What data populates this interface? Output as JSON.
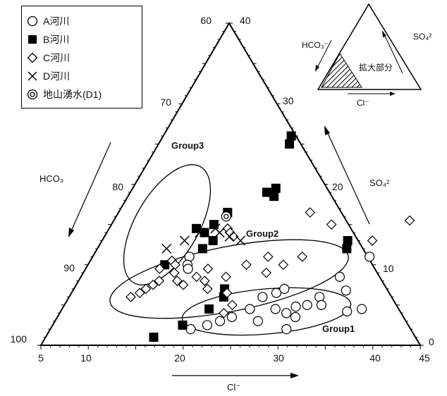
{
  "chart_data": {
    "type": "scatter",
    "subtype": "ternary-enlarged-section",
    "corner_labels": {
      "left_top": "60",
      "left_bottom": "100",
      "right_top": "40",
      "right_bottom": "0"
    },
    "left_axis_ticks": [
      "70",
      "80",
      "90"
    ],
    "right_axis_ticks": [
      "30",
      "20",
      "10"
    ],
    "bottom_axis_ticks": [
      "5",
      "10",
      "20",
      "30",
      "40",
      "45"
    ],
    "axis_labels": {
      "left": "HCO₃",
      "right": "SO₄²",
      "bottom": "Cl⁻"
    },
    "groups": [
      {
        "label": "Group3"
      },
      {
        "label": "Group2"
      },
      {
        "label": "Group1"
      }
    ],
    "legend": [
      {
        "key": "A",
        "label": "A河川",
        "marker": "open-circle"
      },
      {
        "key": "B",
        "label": "B河川",
        "marker": "filled-square"
      },
      {
        "key": "C",
        "label": "C河川",
        "marker": "open-diamond"
      },
      {
        "key": "D",
        "label": "D河川",
        "marker": "cross"
      },
      {
        "key": "D1",
        "label": "地山湧水(D1)",
        "marker": "double-circle"
      }
    ],
    "inset": {
      "labels": {
        "left": "HCO₃⁻",
        "right": "SO₄²",
        "bottom": "Cl⁻",
        "region": "拡大部分"
      }
    },
    "units": "Cl, SO4 in %; HCO3 = 100 - Cl - SO4",
    "series": [
      {
        "name": "A河川",
        "points": [
          {
            "cl": 15.2,
            "so4": 11
          },
          {
            "cl": 15.5,
            "so4": 10
          },
          {
            "cl": 15.8,
            "so4": 9.5
          },
          {
            "cl": 19.8,
            "so4": 2
          },
          {
            "cl": 21.3,
            "so4": 2.5
          },
          {
            "cl": 22.4,
            "so4": 3
          },
          {
            "cl": 23.4,
            "so4": 3.5
          },
          {
            "cl": 24.8,
            "so4": 4.5
          },
          {
            "cl": 25.4,
            "so4": 6
          },
          {
            "cl": 26.6,
            "so4": 6.5
          },
          {
            "cl": 27.2,
            "so4": 7
          },
          {
            "cl": 26.4,
            "so4": 3
          },
          {
            "cl": 27.5,
            "so4": 4.5
          },
          {
            "cl": 28.9,
            "so4": 4
          },
          {
            "cl": 29.5,
            "so4": 4.8
          },
          {
            "cl": 30.1,
            "so4": 3.5
          },
          {
            "cl": 30.6,
            "so4": 5
          },
          {
            "cl": 29.9,
            "so4": 2
          },
          {
            "cl": 31.4,
            "so4": 6
          },
          {
            "cl": 32.1,
            "so4": 5
          },
          {
            "cl": 33.8,
            "so4": 6.8
          },
          {
            "cl": 35.2,
            "so4": 4.2
          },
          {
            "cl": 36.6,
            "so4": 4.5
          },
          {
            "cl": 34.2,
            "so4": 11
          },
          {
            "cl": 32.3,
            "so4": 8.5
          }
        ]
      },
      {
        "name": "B河川",
        "points": [
          {
            "cl": 18.5,
            "so4": 26
          },
          {
            "cl": 18.8,
            "so4": 25
          },
          {
            "cl": 19.4,
            "so4": 19
          },
          {
            "cl": 20.1,
            "so4": 19.5
          },
          {
            "cl": 20.4,
            "so4": 18.5
          },
          {
            "cl": 16.5,
            "so4": 16.5
          },
          {
            "cl": 14.2,
            "so4": 14.5
          },
          {
            "cl": 15.3,
            "so4": 14
          },
          {
            "cl": 15.8,
            "so4": 15
          },
          {
            "cl": 16.1,
            "so4": 12
          },
          {
            "cl": 16.7,
            "so4": 13
          },
          {
            "cl": 13.1,
            "so4": 10
          },
          {
            "cl": 20.9,
            "so4": 7
          },
          {
            "cl": 21.3,
            "so4": 6
          },
          {
            "cl": 20.5,
            "so4": 4.5
          },
          {
            "cl": 18.7,
            "so4": 2.5
          },
          {
            "cl": 16.4,
            "so4": 1
          },
          {
            "cl": 30.9,
            "so4": 13
          },
          {
            "cl": 31.3,
            "so4": 12
          }
        ]
      },
      {
        "name": "C河川",
        "points": [
          {
            "cl": 11.5,
            "so4": 6
          },
          {
            "cl": 12.2,
            "so4": 6.5
          },
          {
            "cl": 12.6,
            "so4": 7
          },
          {
            "cl": 13.1,
            "so4": 7.5
          },
          {
            "cl": 13.5,
            "so4": 8
          },
          {
            "cl": 12.8,
            "so4": 9.5
          },
          {
            "cl": 13.6,
            "so4": 10.5
          },
          {
            "cl": 14.2,
            "so4": 10
          },
          {
            "cl": 14.6,
            "so4": 9
          },
          {
            "cl": 15.4,
            "so4": 8
          },
          {
            "cl": 16.3,
            "so4": 7.5
          },
          {
            "cl": 17.2,
            "so4": 8.5
          },
          {
            "cl": 17.9,
            "so4": 9.5
          },
          {
            "cl": 18.3,
            "so4": 8
          },
          {
            "cl": 19.1,
            "so4": 7
          },
          {
            "cl": 20.3,
            "so4": 8.5
          },
          {
            "cl": 21.7,
            "so4": 10
          },
          {
            "cl": 23.5,
            "so4": 11
          },
          {
            "cl": 24.3,
            "so4": 9
          },
          {
            "cl": 25.6,
            "so4": 10
          },
          {
            "cl": 27.1,
            "so4": 11
          },
          {
            "cl": 28.2,
            "so4": 15
          },
          {
            "cl": 21.4,
            "so4": 6.5
          },
          {
            "cl": 22.7,
            "so4": 5
          },
          {
            "cl": 22.3,
            "so4": 4
          },
          {
            "cl": 25.2,
            "so4": 16.5
          },
          {
            "cl": 36.2,
            "so4": 15.5
          },
          {
            "cl": 33.5,
            "so4": 13
          },
          {
            "cl": 17.5,
            "so4": 14.5
          },
          {
            "cl": 18.0,
            "so4": 14
          },
          {
            "cl": 18.6,
            "so4": 13.5
          }
        ]
      },
      {
        "name": "D河川",
        "points": [
          {
            "cl": 14.8,
            "so4": 14
          },
          {
            "cl": 16.2,
            "so4": 14.5
          },
          {
            "cl": 16.9,
            "so4": 14
          },
          {
            "cl": 18.2,
            "so4": 13.5
          },
          {
            "cl": 19.6,
            "so4": 13
          },
          {
            "cl": 12.3,
            "so4": 12
          },
          {
            "cl": 13.7,
            "so4": 13
          }
        ]
      },
      {
        "name": "地山湧水(D1)",
        "points": [
          {
            "cl": 16.6,
            "so4": 16
          }
        ]
      }
    ]
  }
}
